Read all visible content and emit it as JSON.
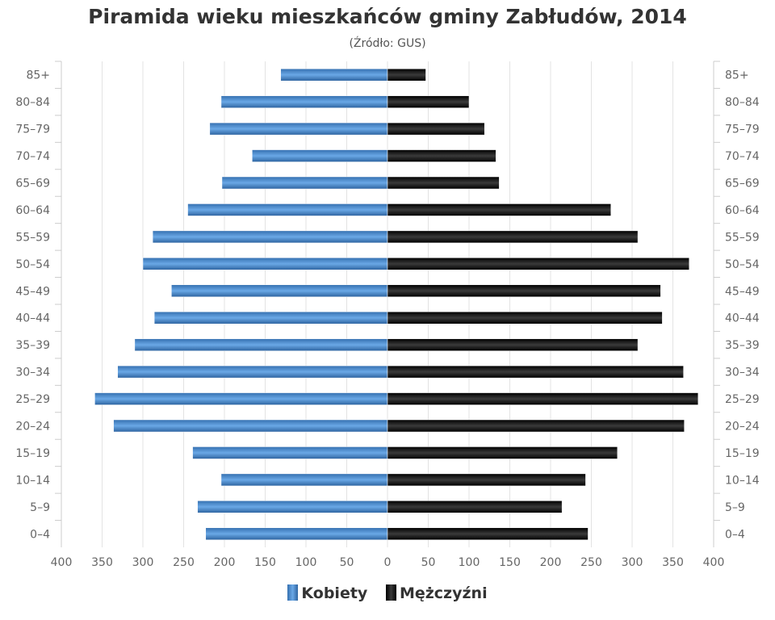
{
  "chart_data": {
    "type": "bar",
    "orientation": "horizontal-pyramid",
    "title": "Piramida wieku mieszkańców gminy Zabłudów, 2014",
    "subtitle": "(Źródło: GUS)",
    "categories": [
      "85+",
      "80-84",
      "75-79",
      "70-74",
      "65-69",
      "60-64",
      "55-59",
      "50-54",
      "45-49",
      "40-44",
      "35-39",
      "30-34",
      "25-29",
      "20-24",
      "15-19",
      "10-14",
      "5-9",
      "0-4"
    ],
    "series": [
      {
        "name": "Kobiety",
        "color": "#4a86c8",
        "side": "left",
        "values": [
          131,
          204,
          218,
          166,
          203,
          245,
          288,
          300,
          265,
          286,
          310,
          331,
          359,
          336,
          239,
          204,
          233,
          223
        ]
      },
      {
        "name": "Mężczyźni",
        "color": "#1a1a1a",
        "side": "right",
        "values": [
          47,
          100,
          119,
          133,
          137,
          274,
          307,
          370,
          335,
          337,
          307,
          363,
          381,
          364,
          282,
          243,
          214,
          246
        ]
      }
    ],
    "xlim": [
      -400,
      400
    ],
    "xticks": [
      "400",
      "350",
      "300",
      "250",
      "200",
      "150",
      "100",
      "50",
      "0",
      "50",
      "100",
      "150",
      "200",
      "250",
      "300",
      "350",
      "400"
    ],
    "grid": true,
    "legend": "bottom-center"
  }
}
